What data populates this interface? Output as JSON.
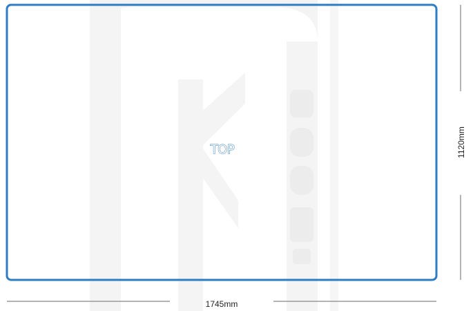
{
  "panel": {
    "label": "TOP",
    "outline_color": "#2e7cc4"
  },
  "watermark": {
    "text": "uk.com",
    "color": "#f3f3f3"
  },
  "dimensions": {
    "width_label": "1745mm",
    "height_label": "1120mm",
    "line_color": "#9a9a9a"
  }
}
